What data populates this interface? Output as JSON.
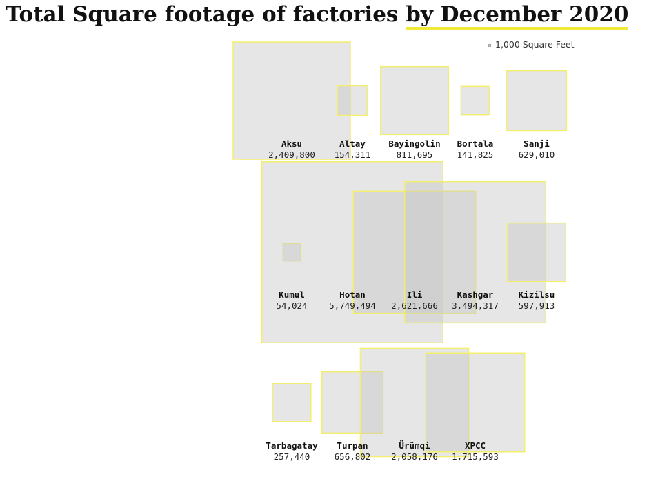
{
  "chart_data": {
    "type": "square",
    "title": "Total Square footage of factories",
    "title_highlight": "by December 2020",
    "legend": {
      "value": 1000,
      "label": "1,000 Square Feet"
    },
    "categories": [
      "Aksu",
      "Altay",
      "Bayingolin",
      "Bortala",
      "Sanji",
      "Kumul",
      "Hotan",
      "Ili",
      "Kashgar",
      "Kizilsu",
      "Tarbagatay",
      "Turpan",
      "Ürümqi",
      "XPCC"
    ],
    "values": [
      2409800,
      154311,
      811695,
      141825,
      629010,
      54024,
      5749494,
      2621666,
      3494317,
      597913,
      257440,
      656802,
      2058176,
      1715593
    ],
    "value_labels": [
      "2,409,800",
      "154,311",
      "811,695",
      "141,825",
      "629,010",
      "54,024",
      "5,749,494",
      "2,621,666",
      "3,494,317",
      "597,913",
      "257,440",
      "656,802",
      "2,058,176",
      "1,715,593"
    ],
    "color": "#c8c8c8",
    "stroke": "#f3ee6b"
  }
}
